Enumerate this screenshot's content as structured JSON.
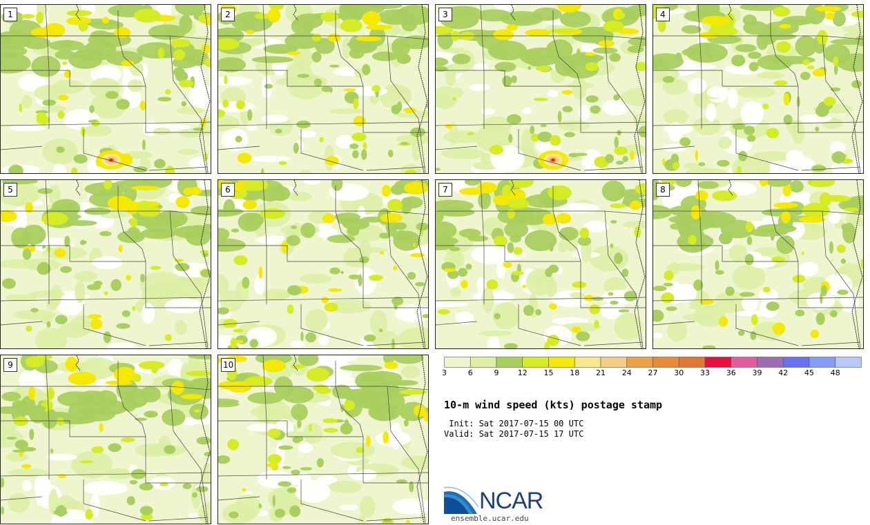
{
  "panels": [
    {
      "label": "1",
      "seed": 11,
      "hotspot": "sw"
    },
    {
      "label": "2",
      "seed": 23,
      "hotspot": "none"
    },
    {
      "label": "3",
      "seed": 37,
      "hotspot": "s"
    },
    {
      "label": "4",
      "seed": 41,
      "hotspot": "none"
    },
    {
      "label": "5",
      "seed": 53,
      "hotspot": "none"
    },
    {
      "label": "6",
      "seed": 67,
      "hotspot": "none"
    },
    {
      "label": "7",
      "seed": 79,
      "hotspot": "none"
    },
    {
      "label": "8",
      "seed": 83,
      "hotspot": "none"
    },
    {
      "label": "9",
      "seed": 97,
      "hotspot": "none"
    },
    {
      "label": "10",
      "seed": 101,
      "hotspot": "none"
    }
  ],
  "colorbar": {
    "colors": [
      "#ecf4cc",
      "#dcefa4",
      "#a9cf5e",
      "#d5ec23",
      "#f5e900",
      "#f7e88c",
      "#f3cd86",
      "#eaa248",
      "#e88b38",
      "#df7834",
      "#e8103e",
      "#e45a9c",
      "#9b6cb0",
      "#6a70f4",
      "#869cf9",
      "#b8c8f8"
    ],
    "ticks": [
      "3",
      "6",
      "9",
      "12",
      "15",
      "18",
      "21",
      "24",
      "27",
      "30",
      "33",
      "36",
      "39",
      "42",
      "45",
      "48"
    ]
  },
  "title": "10-m wind speed (kts) postage stamp",
  "init": " Init: Sat 2017-07-15 00 UTC",
  "valid": "Valid: Sat 2017-07-15 17 UTC",
  "logo": {
    "name": "NCAR",
    "url": "ensemble.ucar.edu"
  }
}
